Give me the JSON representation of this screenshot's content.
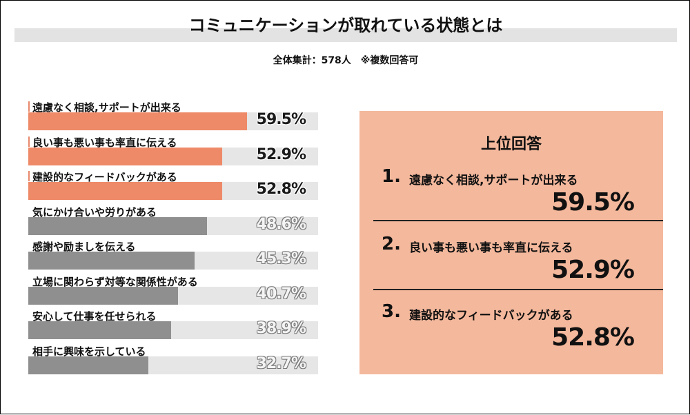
{
  "title": "コミュニケーションが取れている状態とは",
  "subtitle": "全体集計：578人　※複数回答可",
  "chart_data": {
    "type": "bar",
    "orientation": "horizontal",
    "unit": "%",
    "categories": [
      "遠慮なく相談,サポートが出来る",
      "良い事も悪い事も率直に伝える",
      "建設的なフィードバックがある",
      "気にかけ合いや労りがある",
      "感謝や励ましを伝える",
      "立場に関わらず対等な関係性がある",
      "安心して仕事を任せられる",
      "相手に興味を示している"
    ],
    "values": [
      59.5,
      52.9,
      52.8,
      48.6,
      45.3,
      40.7,
      38.9,
      32.7
    ],
    "value_labels": [
      "59.5%",
      "52.9%",
      "52.8%",
      "48.6%",
      "45.3%",
      "40.7%",
      "38.9%",
      "32.7%"
    ],
    "xlim": [
      0,
      100
    ],
    "highlight_top": 3,
    "colors": {
      "highlight": "#ee8a68",
      "normal": "#8f8f8f",
      "track": "#e6e6e6"
    }
  },
  "panel": {
    "title": "上位回答",
    "items": [
      {
        "rank": "1",
        "label": "遠慮なく相談,サポートが出来る",
        "value": "59.5%"
      },
      {
        "rank": "2",
        "label": "良い事も悪い事も率直に伝える",
        "value": "52.9%"
      },
      {
        "rank": "3",
        "label": "建設的なフィードバックがある",
        "value": "52.8%"
      }
    ],
    "rank_suffix": ".",
    "background": "#f4b89c"
  }
}
